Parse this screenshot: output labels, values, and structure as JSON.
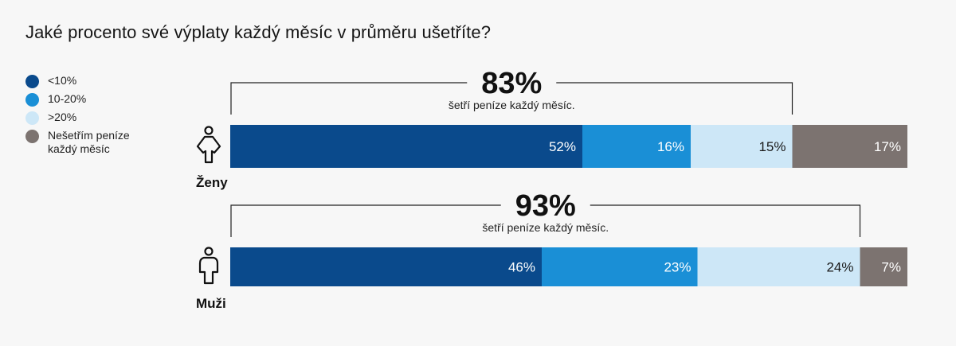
{
  "title": "Jaké procento své výplaty každý měsíc v průměru ušetříte?",
  "legend": [
    {
      "label": "<10%",
      "color": "#0a4a8c"
    },
    {
      "label": "10-20%",
      "color": "#1a8fd6"
    },
    {
      "label": ">20%",
      "color": "#cde7f7"
    },
    {
      "label": "Nešetřím peníze každý měsíc",
      "color": "#7c7370"
    }
  ],
  "chart_data": {
    "type": "bar",
    "orientation": "horizontal",
    "stacked": true,
    "categories": [
      "Ženy",
      "Muži"
    ],
    "series": [
      {
        "name": "<10%",
        "color": "#0a4a8c",
        "values": [
          52,
          46
        ],
        "labels": [
          "52%",
          "46%"
        ],
        "label_color": "#ffffff"
      },
      {
        "name": "10-20%",
        "color": "#1a8fd6",
        "values": [
          16,
          23
        ],
        "labels": [
          "16%",
          "23%"
        ],
        "label_color": "#ffffff"
      },
      {
        "name": ">20%",
        "color": "#cde7f7",
        "values": [
          15,
          24
        ],
        "labels": [
          "15%",
          "24%"
        ],
        "label_color": "#1a1a1a"
      },
      {
        "name": "Nešetřím peníze každý měsíc",
        "color": "#7c7370",
        "values": [
          17,
          7
        ],
        "labels": [
          "17%",
          "7%"
        ],
        "label_color": "#ffffff"
      }
    ],
    "savers": [
      {
        "value": "83%",
        "caption": "šetří peníze každý měsíc."
      },
      {
        "value": "93%",
        "caption": "šetří peníze každý měsíc."
      }
    ],
    "icons": [
      "female-icon",
      "male-icon"
    ],
    "xlim": [
      0,
      100
    ],
    "legend_position": "left"
  }
}
